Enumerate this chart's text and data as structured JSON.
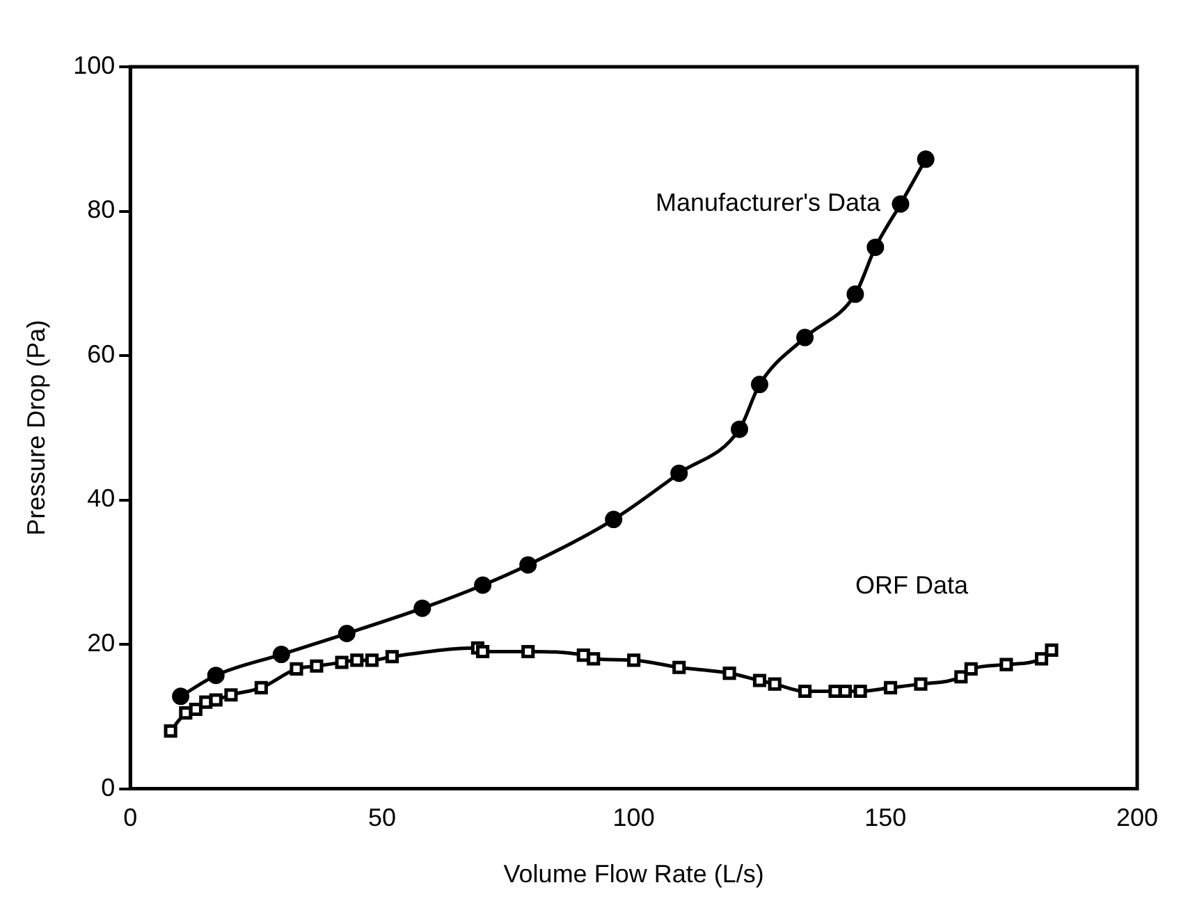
{
  "chart_data": {
    "type": "line",
    "xlabel": "Volume Flow Rate (L/s)",
    "ylabel": "Pressure Drop (Pa)",
    "xlim": [
      0,
      200
    ],
    "xticks": [
      0,
      50,
      100,
      150,
      200
    ],
    "ylim": [
      0,
      100
    ],
    "yticks": [
      0,
      20,
      40,
      60,
      80,
      100
    ],
    "grid": false,
    "legend": false,
    "line_style": "solid",
    "series": [
      {
        "name": "Manufacturer's Data",
        "color": "#000000",
        "marker": "circle",
        "x": [
          10,
          17,
          30,
          43,
          58,
          70,
          79,
          96,
          109,
          121,
          125,
          134,
          144,
          148,
          153,
          158
        ],
        "values": [
          12.8,
          15.7,
          18.6,
          21.5,
          25,
          28.2,
          31,
          37.3,
          43.7,
          49.8,
          56,
          62.5,
          68.5,
          75,
          81,
          87.2
        ]
      },
      {
        "name": "ORF Data",
        "color": "#000000",
        "marker": "square",
        "x": [
          8,
          11,
          13,
          15,
          17,
          20,
          26,
          33,
          37,
          42,
          45,
          48,
          52,
          69,
          70,
          79,
          90,
          92,
          100,
          109,
          119,
          125,
          128,
          134,
          140,
          142,
          145,
          151,
          157,
          165,
          167,
          174,
          181,
          183
        ],
        "values": [
          8,
          10.5,
          11,
          12,
          12.3,
          13,
          14,
          16.6,
          17,
          17.5,
          17.8,
          17.8,
          18.3,
          19.5,
          19,
          19,
          18.5,
          18,
          17.8,
          16.8,
          16,
          15,
          14.5,
          13.5,
          13.5,
          13.5,
          13.5,
          14,
          14.5,
          15.5,
          16.6,
          17.2,
          18,
          19.2
        ]
      }
    ]
  }
}
